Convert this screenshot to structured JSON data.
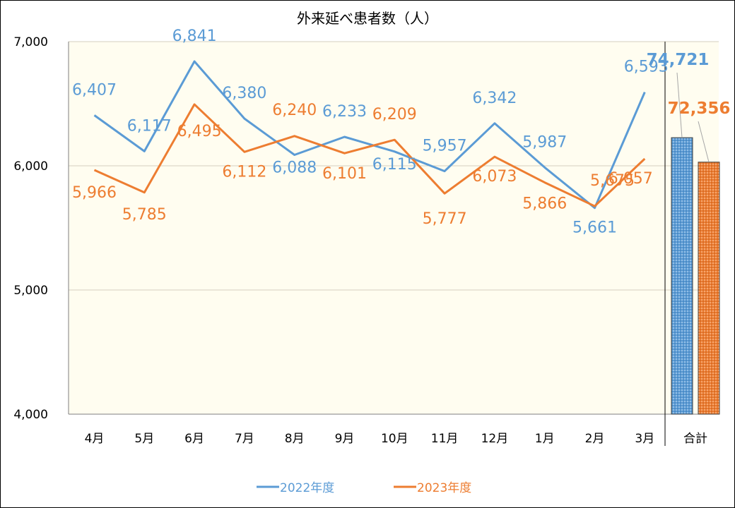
{
  "chart_data": {
    "type": "line",
    "title": "外来延べ患者数（人）",
    "categories": [
      "4月",
      "5月",
      "6月",
      "7月",
      "8月",
      "9月",
      "10月",
      "11月",
      "12月",
      "1月",
      "2月",
      "3月"
    ],
    "ylim": [
      4000,
      7000
    ],
    "yticks": [
      "4,000",
      "5,000",
      "6,000",
      "7,000"
    ],
    "grid": true,
    "legend_position": "bottom",
    "series": [
      {
        "name": "2022年度",
        "color": "#5b9bd5",
        "values": [
          6407,
          6117,
          6841,
          6380,
          6088,
          6233,
          6115,
          5957,
          6342,
          5987,
          5661,
          6593
        ],
        "labels": [
          "6,407",
          "6,117",
          "6,841",
          "6,380",
          "6,088",
          "6,233",
          "6,115",
          "5,957",
          "6,342",
          "5,987",
          "5,661",
          "6,593"
        ],
        "total_label": "74,721"
      },
      {
        "name": "2023年度",
        "color": "#ed7d31",
        "values": [
          5966,
          5785,
          6495,
          6112,
          6240,
          6101,
          6209,
          5777,
          6073,
          5866,
          5675,
          6057
        ],
        "labels": [
          "5,966",
          "5,785",
          "6,495",
          "6,112",
          "6,240",
          "6,101",
          "6,209",
          "5,777",
          "6,073",
          "5,866",
          "5,675",
          "6,057"
        ],
        "total_label": "72,356"
      }
    ],
    "total": {
      "category": "合計",
      "series_values": [
        74721,
        72356
      ]
    }
  }
}
